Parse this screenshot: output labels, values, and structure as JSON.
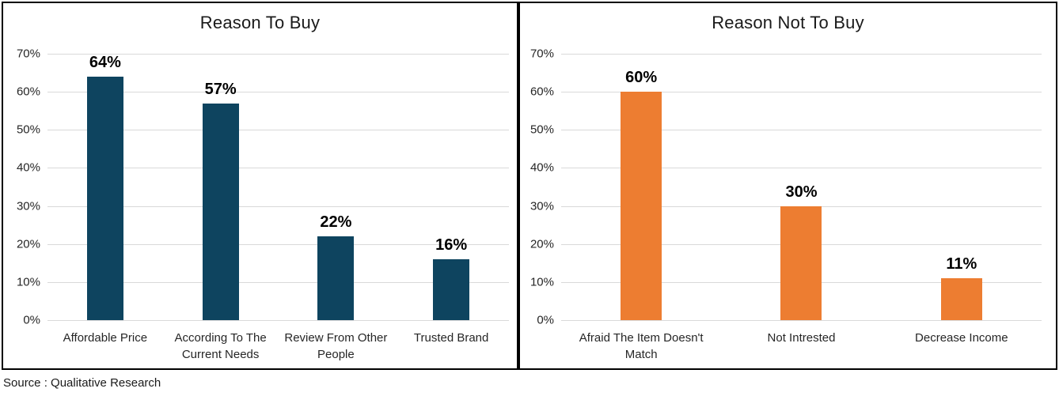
{
  "source_note": "Source : Qualitative Research",
  "colors": {
    "left_bar": "#0E445F",
    "right_bar": "#ED7D31",
    "gridline": "#D9D9D9",
    "panel_border": "#000000",
    "text": "#262626"
  },
  "chart_data": [
    {
      "type": "bar",
      "title": "Reason To Buy",
      "categories": [
        "Affordable Price",
        "According To The Current Needs",
        "Review From Other People",
        "Trusted Brand"
      ],
      "values": [
        64,
        57,
        22,
        16
      ],
      "data_labels": [
        "64%",
        "57%",
        "22%",
        "16%"
      ],
      "bar_color": "#0E445F",
      "ylim": [
        0,
        70
      ],
      "yticks": [
        "0%",
        "10%",
        "20%",
        "30%",
        "40%",
        "50%",
        "60%",
        "70%"
      ],
      "grid": true,
      "legend": "none",
      "xlabel": "",
      "ylabel": ""
    },
    {
      "type": "bar",
      "title": "Reason Not To Buy",
      "categories": [
        "Afraid The Item Doesn't Match",
        "Not Intrested",
        "Decrease Income"
      ],
      "values": [
        60,
        30,
        11
      ],
      "data_labels": [
        "60%",
        "30%",
        "11%"
      ],
      "bar_color": "#ED7D31",
      "ylim": [
        0,
        70
      ],
      "yticks": [
        "0%",
        "10%",
        "20%",
        "30%",
        "40%",
        "50%",
        "60%",
        "70%"
      ],
      "grid": true,
      "legend": "none",
      "xlabel": "",
      "ylabel": ""
    }
  ]
}
